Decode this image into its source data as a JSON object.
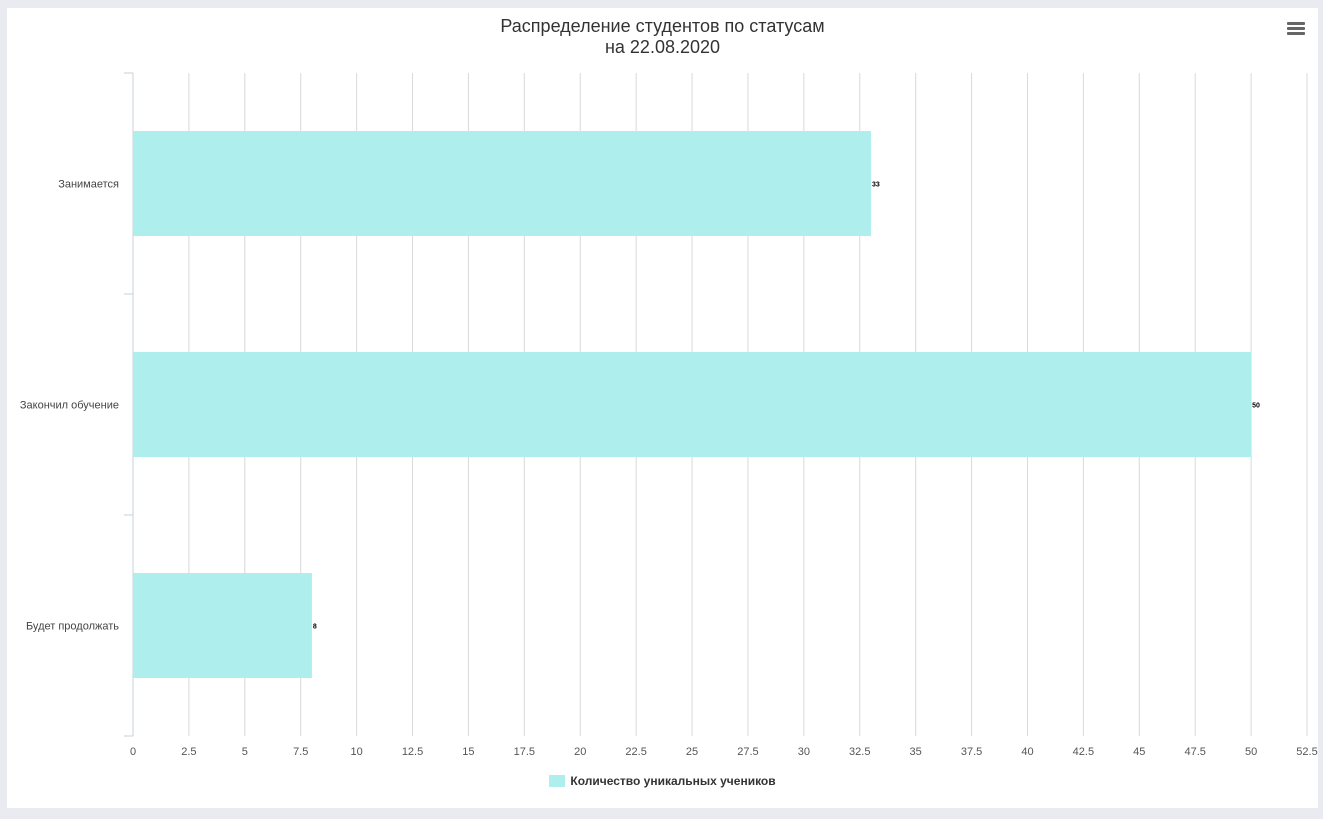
{
  "chart_title": {
    "line1": "Распределение студентов по статусам",
    "line2": "на 22.08.2020"
  },
  "menu": {
    "icon": "hamburger-menu-icon"
  },
  "colors": {
    "bar": "#aeeeed",
    "grid": "#d9d9d9",
    "axis": "#c6d1da",
    "text": "#333333",
    "background": "#e9ebf0"
  },
  "chart_data": {
    "type": "bar",
    "orientation": "horizontal",
    "title": "Распределение студентов по статусам на 22.08.2020",
    "categories": [
      "Занимается",
      "Закончил обучение",
      "Будет продолжать"
    ],
    "series": [
      {
        "name": "Количество уникальных учеников",
        "values": [
          33,
          50,
          8
        ]
      }
    ],
    "data_labels": [
      "33",
      "50",
      "8"
    ],
    "xlim": [
      0,
      52.5
    ],
    "x_ticks": [
      "0",
      "2.5",
      "5",
      "7.5",
      "10",
      "12.5",
      "15",
      "17.5",
      "20",
      "22.5",
      "25",
      "27.5",
      "30",
      "32.5",
      "35",
      "37.5",
      "40",
      "42.5",
      "45",
      "47.5",
      "50",
      "52.5"
    ],
    "xlabel": "",
    "ylabel": "",
    "grid": true,
    "legend_position": "bottom-center"
  }
}
